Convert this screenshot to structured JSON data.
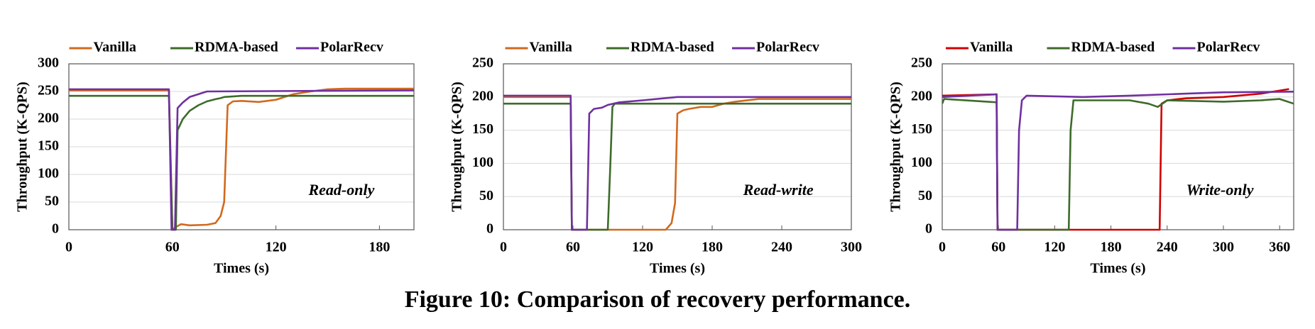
{
  "caption": "Figure 10: Comparison of recovery performance.",
  "chart_data": [
    {
      "type": "line",
      "annotation": "Read-only",
      "xlabel": "Times (s)",
      "ylabel": "Throughput (K-QPS)",
      "xlim": [
        0,
        200
      ],
      "xticks": [
        0,
        60,
        120,
        180
      ],
      "ylim": [
        0,
        300
      ],
      "yticks": [
        0,
        50,
        100,
        150,
        200,
        250,
        300
      ],
      "grid": true,
      "legend": "top",
      "series": [
        {
          "name": "Vanilla",
          "color": "#d2691e",
          "x": [
            0,
            58,
            60,
            62,
            65,
            70,
            80,
            85,
            88,
            90,
            92,
            95,
            100,
            110,
            120,
            130,
            140,
            150,
            160,
            200
          ],
          "values": [
            252,
            252,
            0,
            5,
            10,
            8,
            9,
            12,
            25,
            50,
            225,
            232,
            233,
            231,
            235,
            245,
            250,
            254,
            255,
            255
          ]
        },
        {
          "name": "RDMA-based",
          "color": "#3d6b2a",
          "x": [
            0,
            58,
            60,
            62,
            63,
            66,
            70,
            75,
            80,
            85,
            88,
            90,
            100,
            200
          ],
          "values": [
            242,
            242,
            0,
            0,
            180,
            200,
            215,
            225,
            232,
            236,
            238,
            240,
            242,
            242
          ]
        },
        {
          "name": "PolarRecv",
          "color": "#7030a0",
          "x": [
            0,
            58,
            59.5,
            61.5,
            63,
            66,
            70,
            75,
            80,
            200
          ],
          "values": [
            254,
            254,
            0,
            0,
            220,
            230,
            240,
            245,
            250,
            252
          ]
        }
      ]
    },
    {
      "type": "line",
      "annotation": "Read-write",
      "xlabel": "Times (s)",
      "ylabel": "Throughput (K-QPS)",
      "xlim": [
        0,
        300
      ],
      "xticks": [
        0,
        60,
        120,
        180,
        240,
        300
      ],
      "ylim": [
        0,
        250
      ],
      "yticks": [
        0,
        50,
        100,
        150,
        200,
        250
      ],
      "grid": true,
      "legend": "top",
      "series": [
        {
          "name": "Vanilla",
          "color": "#d2691e",
          "x": [
            0,
            58,
            59,
            140,
            145,
            148,
            150,
            155,
            160,
            170,
            180,
            190,
            200,
            220,
            300
          ],
          "values": [
            200,
            200,
            0,
            0,
            10,
            40,
            175,
            180,
            182,
            185,
            185,
            190,
            193,
            197,
            197
          ]
        },
        {
          "name": "RDMA-based",
          "color": "#3d6b2a",
          "x": [
            0,
            58,
            59,
            90,
            92,
            94,
            96,
            300
          ],
          "values": [
            190,
            190,
            0,
            0,
            90,
            185,
            190,
            190
          ]
        },
        {
          "name": "PolarRecv",
          "color": "#7030a0",
          "x": [
            0,
            58,
            59,
            72,
            74,
            78,
            85,
            90,
            100,
            120,
            150,
            300
          ],
          "values": [
            202,
            202,
            0,
            0,
            175,
            182,
            184,
            188,
            192,
            195,
            200,
            200
          ]
        }
      ]
    },
    {
      "type": "line",
      "annotation": "Write-only",
      "xlabel": "Times (s)",
      "ylabel": "Throughput (K-QPS)",
      "xlim": [
        0,
        375
      ],
      "xticks": [
        0,
        60,
        120,
        180,
        240,
        300,
        360
      ],
      "ylim": [
        0,
        250
      ],
      "yticks": [
        0,
        50,
        100,
        150,
        200,
        250
      ],
      "grid": true,
      "legend": "top",
      "series": [
        {
          "name": "Vanilla",
          "color": "#d00000",
          "x": [
            0,
            58,
            59,
            232,
            234,
            240,
            260,
            300,
            340,
            370
          ],
          "values": [
            202,
            204,
            0,
            0,
            190,
            195,
            198,
            200,
            205,
            212
          ]
        },
        {
          "name": "RDMA-based",
          "color": "#3d6b2a",
          "x": [
            0,
            2,
            58,
            59,
            135,
            137,
            140,
            200,
            220,
            230,
            240,
            300,
            340,
            360,
            375
          ],
          "values": [
            190,
            197,
            192,
            0,
            0,
            150,
            195,
            195,
            190,
            185,
            195,
            193,
            195,
            197,
            190
          ]
        },
        {
          "name": "PolarRecv",
          "color": "#7030a0",
          "x": [
            0,
            58,
            59,
            80,
            82,
            85,
            90,
            150,
            200,
            260,
            300,
            375
          ],
          "values": [
            200,
            204,
            0,
            0,
            150,
            195,
            202,
            200,
            202,
            205,
            207,
            208
          ]
        }
      ]
    }
  ]
}
